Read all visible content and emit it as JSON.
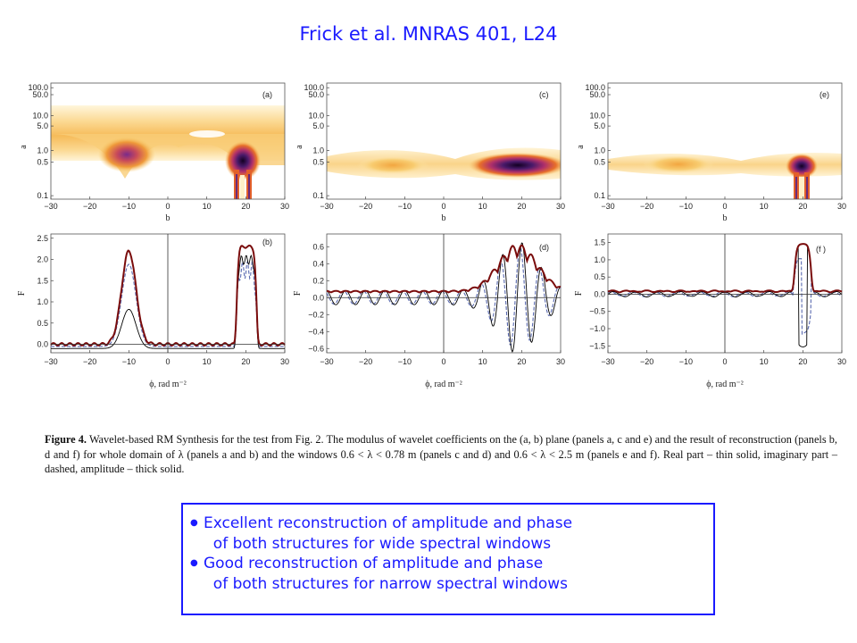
{
  "title": "Frick et al. MNRAS 401, L24",
  "figure": {
    "top_panels": {
      "ylabel": "a",
      "xlabel": "b",
      "y_ticks": [
        "100.0",
        "50.0",
        "10.0",
        "5.0",
        "1.0",
        "0.5",
        "0.1"
      ],
      "x_ticks": [
        "−30",
        "−20",
        "−10",
        "0",
        "10",
        "20",
        "30"
      ],
      "panel_labels": [
        "(a)",
        "(c)",
        "(e)"
      ]
    },
    "bottom_panels": {
      "ylabel": "F",
      "xlabel": "ϕ, rad m⁻²",
      "x_ticks": [
        "−30",
        "−20",
        "−10",
        "0",
        "10",
        "20",
        "30"
      ],
      "panel_labels": [
        "(b)",
        "(d)",
        "(f )"
      ],
      "y_ticks_b": [
        "2.5",
        "2.0",
        "1.5",
        "1.0",
        "0.5",
        "0.0"
      ],
      "y_ticks_d": [
        "0.6",
        "0.4",
        "0.2",
        "0.0",
        "−0.2",
        "−0.4",
        "−0.6"
      ],
      "y_ticks_f": [
        "1.5",
        "1.0",
        "0.5",
        "0.0",
        "−0.5",
        "−1.0",
        "−1.5"
      ]
    },
    "colors": {
      "real": "#000000",
      "imaginary": "#5a6ab0",
      "amplitude": "#7a0c0c"
    }
  },
  "caption": {
    "label": "Figure 4.",
    "text": "Wavelet-based RM Synthesis for the test from Fig. 2. The modulus of wavelet coefficients on the (a, b) plane (panels a, c and e) and the result of reconstruction (panels b, d and f) for whole domain of λ (panels a and b) and the windows 0.6 < λ < 0.78 m (panels c and d) and 0.6 < λ < 2.5 m (panels e and f). Real part – thin solid, imaginary part – dashed, amplitude – thick solid."
  },
  "bullets": [
    "Excellent reconstruction of amplitude and phase\n  of both structures for wide spectral windows",
    "Good reconstruction of amplitude and phase\n  of both structures for narrow spectral windows"
  ]
}
